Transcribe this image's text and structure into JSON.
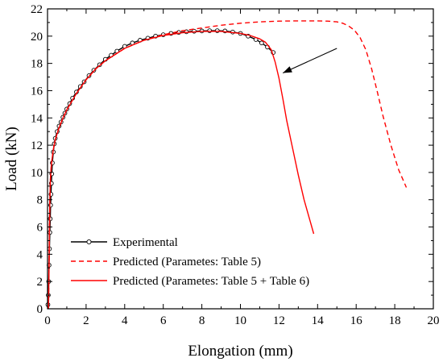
{
  "chart_data": {
    "type": "line",
    "xlabel": "Elongation (mm)",
    "ylabel": "Load (kN)",
    "xlim": [
      0,
      20
    ],
    "ylim": [
      0,
      22
    ],
    "xticks": [
      0,
      2,
      4,
      6,
      8,
      10,
      12,
      14,
      16,
      18,
      20
    ],
    "yticks": [
      0,
      2,
      4,
      6,
      8,
      10,
      12,
      14,
      16,
      18,
      20,
      22
    ],
    "grid": false,
    "legend_position": "bottom-left",
    "series": [
      {
        "name": "Experimental",
        "style": "line-with-open-circles",
        "color": "#000000",
        "x": [
          0.02,
          0.04,
          0.06,
          0.08,
          0.1,
          0.12,
          0.14,
          0.16,
          0.18,
          0.2,
          0.22,
          0.25,
          0.3,
          0.35,
          0.4,
          0.5,
          0.6,
          0.7,
          0.8,
          0.9,
          1.0,
          1.15,
          1.3,
          1.5,
          1.7,
          1.9,
          2.15,
          2.4,
          2.7,
          3.0,
          3.3,
          3.6,
          4.0,
          4.4,
          4.8,
          5.2,
          5.6,
          6.0,
          6.4,
          6.8,
          7.2,
          7.6,
          8.0,
          8.4,
          8.8,
          9.2,
          9.6,
          10.0,
          10.4,
          10.8,
          11.1,
          11.4,
          11.7
        ],
        "y": [
          0.3,
          1.0,
          2.0,
          3.2,
          4.4,
          5.6,
          6.6,
          7.6,
          8.4,
          9.2,
          9.9,
          10.7,
          11.5,
          12.1,
          12.5,
          13.0,
          13.4,
          13.7,
          14.05,
          14.35,
          14.65,
          15.05,
          15.45,
          15.9,
          16.3,
          16.65,
          17.1,
          17.5,
          17.9,
          18.3,
          18.6,
          18.9,
          19.25,
          19.5,
          19.7,
          19.85,
          20.0,
          20.1,
          20.2,
          20.27,
          20.32,
          20.36,
          20.38,
          20.4,
          20.4,
          20.38,
          20.3,
          20.2,
          20.0,
          19.75,
          19.5,
          19.2,
          18.8
        ]
      },
      {
        "name": "Predicted (Parametes: Table 5)",
        "style": "dashed",
        "color": "#ff0000",
        "x": [
          0.05,
          0.08,
          0.1,
          0.12,
          0.15,
          0.2,
          0.3,
          0.4,
          0.6,
          0.8,
          1.0,
          1.5,
          2.0,
          2.5,
          3.0,
          4.0,
          5.0,
          6.0,
          7.0,
          8.0,
          9.0,
          10.0,
          11.0,
          12.0,
          13.0,
          14.0,
          14.5,
          15.0,
          15.3,
          15.6,
          15.9,
          16.2,
          16.5,
          16.8,
          17.1,
          17.4,
          17.8,
          18.2,
          18.6
        ],
        "y": [
          0.0,
          3.0,
          6.0,
          8.0,
          9.5,
          10.6,
          11.7,
          12.4,
          13.3,
          14.0,
          14.6,
          15.8,
          16.8,
          17.6,
          18.2,
          19.1,
          19.7,
          20.1,
          20.4,
          20.6,
          20.8,
          20.95,
          21.05,
          21.1,
          21.12,
          21.12,
          21.1,
          21.05,
          20.95,
          20.75,
          20.45,
          19.9,
          19.0,
          17.6,
          15.9,
          14.1,
          12.0,
          10.2,
          8.9
        ]
      },
      {
        "name": "Predicted (Parametes: Table 5 + Table 6)",
        "style": "solid",
        "color": "#ff0000",
        "x": [
          0.05,
          0.08,
          0.1,
          0.12,
          0.15,
          0.2,
          0.3,
          0.4,
          0.6,
          0.8,
          1.0,
          1.5,
          2.0,
          2.5,
          3.0,
          4.0,
          5.0,
          6.0,
          7.0,
          8.0,
          9.0,
          10.0,
          10.5,
          11.0,
          11.3,
          11.6,
          11.8,
          12.0,
          12.2,
          12.4,
          12.7,
          13.0,
          13.3,
          13.6,
          13.8
        ],
        "y": [
          0.0,
          3.0,
          6.0,
          8.0,
          9.5,
          10.6,
          11.7,
          12.4,
          13.3,
          14.0,
          14.6,
          15.8,
          16.8,
          17.6,
          18.2,
          19.1,
          19.7,
          20.05,
          20.25,
          20.35,
          20.35,
          20.2,
          20.05,
          19.8,
          19.55,
          19.0,
          18.1,
          16.9,
          15.4,
          13.8,
          11.8,
          9.8,
          8.0,
          6.5,
          5.5
        ]
      }
    ],
    "annotations": [
      {
        "type": "arrow",
        "from": [
          15.0,
          19.1
        ],
        "to": [
          12.2,
          17.3
        ],
        "color": "#000000"
      }
    ]
  }
}
